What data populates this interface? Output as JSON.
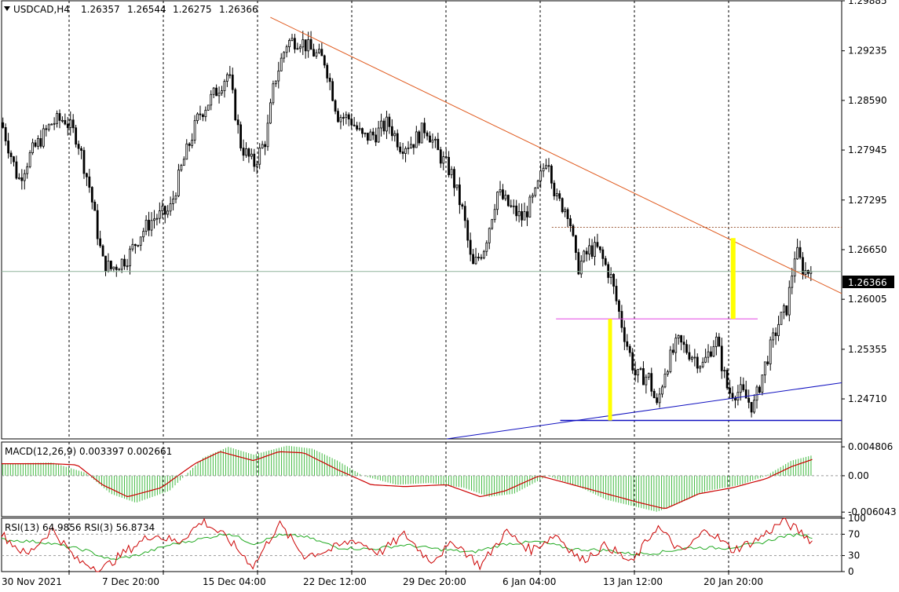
{
  "chart_header": {
    "symbol": "USDCAD,H4",
    "open": "1.26357",
    "high": "1.26544",
    "low": "1.26275",
    "close": "1.26366"
  },
  "price_badge": "1.26366",
  "macd_header": "MACD(12,26,9) 0.003397 0.002661",
  "rsi_header": "RSI(13) 64.9856  RSI(3) 56.8734",
  "colors": {
    "bull": "#000000",
    "bear": "#000000",
    "trendline": "#e05a1e",
    "support": "#1010c0",
    "resistance": "#e040e0",
    "highlight": "#ffff00",
    "macd_hist": "#44bb44",
    "macd_signal": "#cc0000",
    "rsi13": "#22aa22",
    "rsi3": "#cc0000"
  },
  "chart_data": [
    {
      "type": "candlestick",
      "name": "price",
      "y_ticks": [
        "1.29885",
        "1.29235",
        "1.28590",
        "1.27945",
        "1.27295",
        "1.26650",
        "1.26005",
        "1.25355",
        "1.24710"
      ],
      "ylim": [
        1.2419,
        1.29885
      ],
      "x_ticks": [
        "30 Nov 2021",
        "7 Dec 20:00",
        "15 Dec 04:00",
        "22 Dec 12:00",
        "29 Dec 20:00",
        "6 Jan 04:00",
        "13 Jan 12:00",
        "20 Jan 20:00"
      ],
      "last_price": 1.26366,
      "trendline": [
        [
          1.2967,
          0
        ],
        [
          1.2608,
          1
        ]
      ],
      "support_level": 1.2443,
      "resistance_level": 1.2575,
      "prior_high_level": 1.2694,
      "close_path": [
        [
          0,
          1.283
        ],
        [
          0.02,
          1.2755
        ],
        [
          0.035,
          1.279
        ],
        [
          0.06,
          1.283
        ],
        [
          0.075,
          1.2835
        ],
        [
          0.09,
          1.281
        ],
        [
          0.105,
          1.2745
        ],
        [
          0.12,
          1.265
        ],
        [
          0.13,
          1.264
        ],
        [
          0.15,
          1.2655
        ],
        [
          0.165,
          1.2685
        ],
        [
          0.18,
          1.2705
        ],
        [
          0.2,
          1.2715
        ],
        [
          0.215,
          1.2775
        ],
        [
          0.235,
          1.284
        ],
        [
          0.255,
          1.287
        ],
        [
          0.27,
          1.2895
        ],
        [
          0.285,
          1.28
        ],
        [
          0.3,
          1.2775
        ],
        [
          0.315,
          1.281
        ],
        [
          0.325,
          1.2885
        ],
        [
          0.34,
          1.2935
        ],
        [
          0.355,
          1.2938
        ],
        [
          0.37,
          1.2922
        ],
        [
          0.385,
          1.291
        ],
        [
          0.4,
          1.284
        ],
        [
          0.415,
          1.2835
        ],
        [
          0.43,
          1.281
        ],
        [
          0.445,
          1.2815
        ],
        [
          0.46,
          1.283
        ],
        [
          0.475,
          1.28
        ],
        [
          0.49,
          1.2805
        ],
        [
          0.505,
          1.2825
        ],
        [
          0.52,
          1.279
        ],
        [
          0.535,
          1.2765
        ],
        [
          0.55,
          1.271
        ],
        [
          0.56,
          1.264
        ],
        [
          0.575,
          1.267
        ],
        [
          0.59,
          1.274
        ],
        [
          0.605,
          1.272
        ],
        [
          0.62,
          1.2705
        ],
        [
          0.635,
          1.2735
        ],
        [
          0.65,
          1.279
        ],
        [
          0.66,
          1.273
        ],
        [
          0.675,
          1.2715
        ],
        [
          0.685,
          1.264
        ],
        [
          0.7,
          1.2665
        ],
        [
          0.71,
          1.2665
        ],
        [
          0.725,
          1.263
        ],
        [
          0.74,
          1.256
        ],
        [
          0.755,
          1.25
        ],
        [
          0.77,
          1.25
        ],
        [
          0.78,
          1.246
        ],
        [
          0.79,
          1.251
        ],
        [
          0.805,
          1.2545
        ],
        [
          0.82,
          1.253
        ],
        [
          0.835,
          1.2515
        ],
        [
          0.85,
          1.255
        ],
        [
          0.865,
          1.248
        ],
        [
          0.88,
          1.248
        ],
        [
          0.895,
          1.246
        ],
        [
          0.91,
          1.252
        ],
        [
          0.925,
          1.257
        ],
        [
          0.935,
          1.259
        ],
        [
          0.945,
          1.2665
        ],
        [
          0.955,
          1.2637
        ],
        [
          0.965,
          1.2637
        ]
      ]
    },
    {
      "type": "bar+line",
      "name": "MACD(12,26,9)",
      "y_ticks": [
        "0.004806",
        "0.00",
        "-0.006043"
      ],
      "ylim": [
        -0.0068,
        0.0056
      ],
      "histogram_path": [
        [
          0,
          0.002
        ],
        [
          0.06,
          0.0022
        ],
        [
          0.1,
          0.0005
        ],
        [
          0.13,
          -0.003
        ],
        [
          0.16,
          -0.0045
        ],
        [
          0.2,
          -0.0025
        ],
        [
          0.24,
          0.003
        ],
        [
          0.27,
          0.0048
        ],
        [
          0.3,
          0.0035
        ],
        [
          0.34,
          0.005
        ],
        [
          0.37,
          0.0045
        ],
        [
          0.4,
          0.0025
        ],
        [
          0.43,
          0.0
        ],
        [
          0.47,
          -0.0015
        ],
        [
          0.51,
          -0.0012
        ],
        [
          0.55,
          -0.002
        ],
        [
          0.58,
          -0.0035
        ],
        [
          0.61,
          -0.003
        ],
        [
          0.65,
          0.0
        ],
        [
          0.69,
          -0.002
        ],
        [
          0.72,
          -0.004
        ],
        [
          0.75,
          -0.005
        ],
        [
          0.78,
          -0.006
        ],
        [
          0.8,
          -0.005
        ],
        [
          0.84,
          -0.0025
        ],
        [
          0.88,
          -0.0015
        ],
        [
          0.91,
          0.0
        ],
        [
          0.94,
          0.0025
        ],
        [
          0.965,
          0.0034
        ]
      ],
      "signal_path": [
        [
          0,
          0.002
        ],
        [
          0.06,
          0.002
        ],
        [
          0.09,
          0.0018
        ],
        [
          0.12,
          -0.0015
        ],
        [
          0.15,
          -0.0035
        ],
        [
          0.19,
          -0.002
        ],
        [
          0.23,
          0.002
        ],
        [
          0.26,
          0.004
        ],
        [
          0.3,
          0.0025
        ],
        [
          0.33,
          0.004
        ],
        [
          0.36,
          0.0038
        ],
        [
          0.4,
          0.001
        ],
        [
          0.44,
          -0.0015
        ],
        [
          0.48,
          -0.0018
        ],
        [
          0.53,
          -0.0015
        ],
        [
          0.57,
          -0.0035
        ],
        [
          0.6,
          -0.0025
        ],
        [
          0.64,
          0.0
        ],
        [
          0.68,
          -0.0015
        ],
        [
          0.72,
          -0.003
        ],
        [
          0.76,
          -0.0045
        ],
        [
          0.79,
          -0.0055
        ],
        [
          0.83,
          -0.003
        ],
        [
          0.87,
          -0.002
        ],
        [
          0.91,
          -0.0005
        ],
        [
          0.94,
          0.0015
        ],
        [
          0.965,
          0.0027
        ]
      ]
    },
    {
      "type": "line",
      "name": "RSI",
      "y_ticks": [
        "100",
        "70",
        "30",
        "0"
      ],
      "ylim": [
        0,
        100
      ],
      "rsi13_path": [
        [
          0,
          60
        ],
        [
          0.05,
          55
        ],
        [
          0.1,
          40
        ],
        [
          0.13,
          22
        ],
        [
          0.16,
          30
        ],
        [
          0.2,
          50
        ],
        [
          0.24,
          62
        ],
        [
          0.27,
          72
        ],
        [
          0.3,
          52
        ],
        [
          0.33,
          68
        ],
        [
          0.36,
          66
        ],
        [
          0.4,
          45
        ],
        [
          0.44,
          42
        ],
        [
          0.48,
          50
        ],
        [
          0.52,
          42
        ],
        [
          0.56,
          36
        ],
        [
          0.6,
          52
        ],
        [
          0.64,
          56
        ],
        [
          0.68,
          42
        ],
        [
          0.72,
          40
        ],
        [
          0.75,
          33
        ],
        [
          0.78,
          35
        ],
        [
          0.82,
          45
        ],
        [
          0.86,
          44
        ],
        [
          0.9,
          52
        ],
        [
          0.93,
          66
        ],
        [
          0.95,
          70
        ],
        [
          0.965,
          65
        ]
      ],
      "rsi3_path": [
        [
          0,
          70
        ],
        [
          0.03,
          30
        ],
        [
          0.06,
          80
        ],
        [
          0.09,
          20
        ],
        [
          0.12,
          5
        ],
        [
          0.15,
          40
        ],
        [
          0.18,
          70
        ],
        [
          0.21,
          55
        ],
        [
          0.24,
          95
        ],
        [
          0.27,
          60
        ],
        [
          0.3,
          10
        ],
        [
          0.33,
          90
        ],
        [
          0.36,
          30
        ],
        [
          0.39,
          40
        ],
        [
          0.42,
          60
        ],
        [
          0.45,
          35
        ],
        [
          0.48,
          70
        ],
        [
          0.51,
          20
        ],
        [
          0.54,
          55
        ],
        [
          0.57,
          10
        ],
        [
          0.6,
          75
        ],
        [
          0.63,
          40
        ],
        [
          0.66,
          70
        ],
        [
          0.69,
          20
        ],
        [
          0.72,
          50
        ],
        [
          0.75,
          15
        ],
        [
          0.78,
          85
        ],
        [
          0.81,
          35
        ],
        [
          0.84,
          80
        ],
        [
          0.87,
          40
        ],
        [
          0.9,
          60
        ],
        [
          0.93,
          95
        ],
        [
          0.95,
          75
        ],
        [
          0.965,
          57
        ]
      ]
    }
  ]
}
